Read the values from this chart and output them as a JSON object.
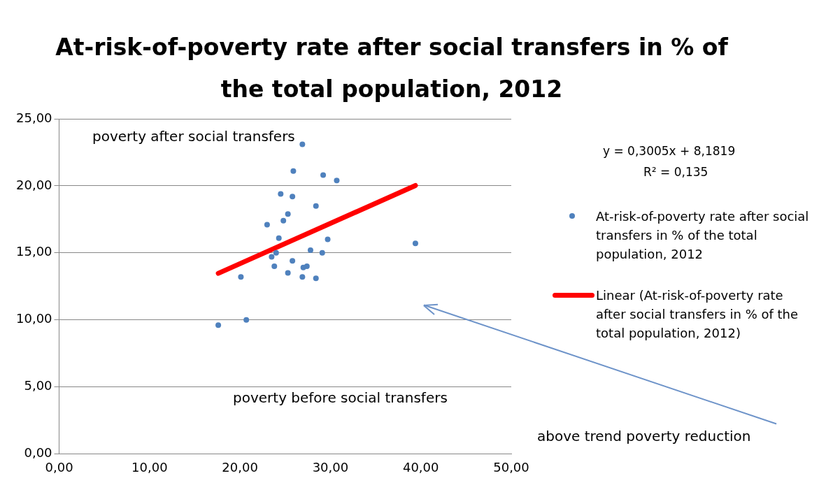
{
  "chart_data": {
    "type": "scatter",
    "title": "At-risk-of-poverty rate after social transfers in % of the total population, 2012",
    "series": [
      {
        "name": "At-risk-of-poverty rate after social transfers in % of the total population, 2012",
        "type": "scatter",
        "color": "#4f81bd",
        "marker": "circle",
        "x": [
          26.9,
          25.9,
          29.2,
          30.7,
          24.5,
          25.8,
          28.4,
          25.3,
          24.8,
          23.0,
          24.3,
          29.7,
          39.4,
          27.8,
          29.1,
          24.0,
          23.5,
          25.8,
          23.8,
          27.4,
          27.0,
          25.3,
          20.1,
          26.9,
          28.4,
          20.7,
          17.6
        ],
        "values": [
          23.1,
          21.1,
          20.8,
          20.4,
          19.4,
          19.2,
          18.5,
          17.9,
          17.4,
          17.1,
          16.1,
          16.0,
          15.7,
          15.2,
          15.0,
          15.0,
          14.7,
          14.4,
          14.0,
          14.0,
          13.9,
          13.5,
          13.2,
          13.2,
          13.1,
          10.0,
          9.6
        ]
      },
      {
        "name": "Linear (At-risk-of-poverty rate after social transfers in % of the total population, 2012)",
        "type": "line",
        "color": "#ff0000",
        "marker": "none",
        "line_style": "solid",
        "x": [
          17.6,
          39.4
        ],
        "values": [
          13.47,
          20.02
        ]
      }
    ],
    "xlim": [
      0,
      50
    ],
    "xticks": [
      {
        "value": 0,
        "label": "0,00"
      },
      {
        "value": 10,
        "label": "10,00"
      },
      {
        "value": 20,
        "label": "20,00"
      },
      {
        "value": 30,
        "label": "30,00"
      },
      {
        "value": 40,
        "label": "40,00"
      },
      {
        "value": 50,
        "label": "50,00"
      }
    ],
    "ylim": [
      0,
      25
    ],
    "yticks": [
      {
        "value": 0,
        "label": "0,00"
      },
      {
        "value": 5,
        "label": "5,00"
      },
      {
        "value": 10,
        "label": "10,00"
      },
      {
        "value": 15,
        "label": "15,00"
      },
      {
        "value": 20,
        "label": "20,00"
      },
      {
        "value": 25,
        "label": "25,00"
      }
    ],
    "grid": "y",
    "legend": "right",
    "annotations": [
      "y = 0,3005x + 8,1819",
      "R² = 0,135",
      "poverty after social transfers",
      "poverty before social transfers",
      "above trend poverty reduction"
    ]
  }
}
